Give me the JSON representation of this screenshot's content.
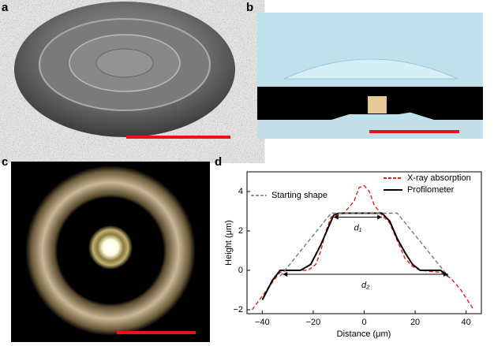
{
  "panel_labels": [
    "a",
    "b",
    "c",
    "d"
  ],
  "chart_data": {
    "type": "line",
    "xlabel": "Distance (μm)",
    "ylabel": "Height (μm)",
    "xlim": [
      -46,
      46
    ],
    "ylim": [
      -2.2,
      5
    ],
    "xticks": [
      {
        "value": -40,
        "label": "−40"
      },
      {
        "value": -20,
        "label": "−20"
      },
      0,
      20,
      40
    ],
    "yticks": [
      {
        "value": -2,
        "label": "−2"
      },
      0,
      2,
      4
    ],
    "series": [
      {
        "name": "X-ray absorption",
        "color": "#e0201b",
        "dash": "dashed",
        "x": [
          -44,
          -40,
          -36,
          -33,
          -30,
          -22,
          -19,
          -17,
          -15,
          -13,
          -8,
          -4,
          -2,
          0,
          2,
          4,
          7,
          10,
          13,
          16,
          19,
          22,
          30,
          34,
          38,
          41,
          43
        ],
        "values": [
          -2,
          -1.3,
          -0.6,
          -0.1,
          0,
          0,
          0.3,
          1,
          2,
          2.7,
          2.9,
          3.5,
          4.2,
          4.3,
          4,
          3.3,
          2.8,
          2.4,
          1.5,
          0.6,
          0.2,
          0,
          -0.1,
          -0.4,
          -1,
          -1.6,
          -2
        ]
      },
      {
        "name": "Profilometer",
        "color": "#000000",
        "dash": "solid",
        "x": [
          -40,
          -36,
          -33,
          -25,
          -21,
          -17,
          -14,
          -12,
          -10,
          0,
          7,
          10,
          13,
          16,
          19,
          22,
          30,
          33
        ],
        "values": [
          -1.5,
          -0.5,
          0,
          0,
          0.3,
          1.3,
          2.2,
          2.8,
          2.9,
          2.9,
          2.9,
          2.5,
          1.6,
          0.9,
          0.3,
          0,
          0,
          -0.3
        ]
      },
      {
        "name": "Starting shape",
        "color": "#777777",
        "dash": "dashed",
        "x": [
          -33,
          -13,
          13,
          33
        ],
        "values": [
          -0.3,
          2.9,
          2.9,
          -0.3
        ]
      }
    ],
    "annotations": [
      {
        "text": "d₁",
        "x": [
          -12,
          7
        ],
        "y": 2.7
      },
      {
        "text": "d₂",
        "x": [
          -32,
          33
        ],
        "y": -0.2
      }
    ]
  }
}
